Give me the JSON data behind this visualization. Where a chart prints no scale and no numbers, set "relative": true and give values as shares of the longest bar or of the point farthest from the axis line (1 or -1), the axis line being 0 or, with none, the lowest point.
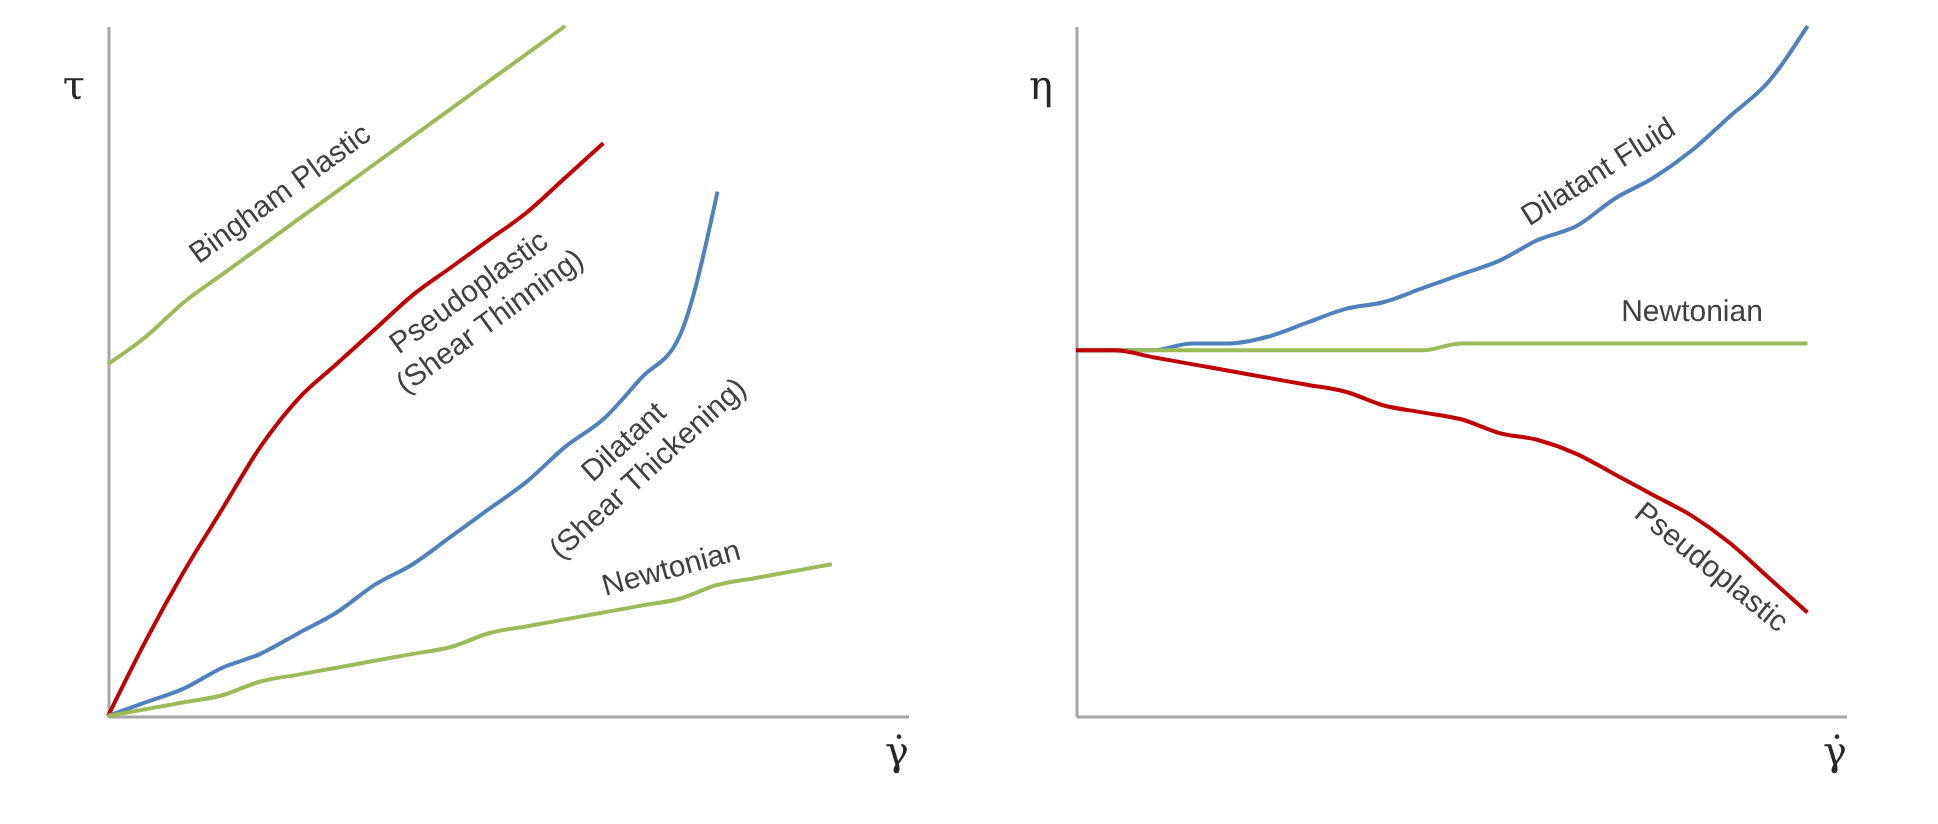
{
  "chart_data": [
    {
      "type": "line",
      "relative": true,
      "xlabel": "γ̇",
      "ylabel": "τ",
      "categories": [
        null,
        null,
        null,
        null,
        null,
        null,
        null,
        null,
        null,
        null,
        null,
        null,
        null,
        null,
        null,
        null,
        null,
        null,
        null,
        null,
        null,
        null
      ],
      "series": [
        {
          "name": "Bingham Plastic",
          "color": "#9bbb59",
          "values": [
            0.51,
            0.55,
            0.6,
            0.64,
            0.68,
            0.72,
            0.76,
            0.8,
            0.84,
            0.88,
            0.92,
            0.96,
            1.0,
            null,
            null,
            null,
            null,
            null,
            null,
            null,
            null,
            null
          ]
        },
        {
          "name": "Pseudoplastic (Shear Thinning)",
          "color": "#c00000",
          "values": [
            0,
            0.11,
            0.21,
            0.3,
            0.39,
            0.46,
            0.51,
            0.56,
            0.61,
            0.65,
            0.69,
            0.73,
            0.78,
            0.83,
            null,
            null,
            null,
            null,
            null,
            null,
            null,
            null
          ]
        },
        {
          "name": "Dilatant (Shear Thickening)",
          "color": "#4f81bd",
          "values": [
            0,
            0.02,
            0.04,
            0.07,
            0.09,
            0.12,
            0.15,
            0.19,
            0.22,
            0.26,
            0.3,
            0.34,
            0.39,
            0.43,
            0.49,
            0.55,
            0.76,
            null,
            null,
            null,
            null,
            null
          ]
        },
        {
          "name": "Newtonian",
          "color": "#9bbb59",
          "values": [
            0,
            0.01,
            0.02,
            0.03,
            0.05,
            0.06,
            0.07,
            0.08,
            0.09,
            0.1,
            0.12,
            0.13,
            0.14,
            0.15,
            0.16,
            0.17,
            0.19,
            0.2,
            0.21,
            0.22,
            null,
            null
          ]
        }
      ]
    },
    {
      "type": "line",
      "relative": true,
      "xlabel": "γ̇",
      "ylabel": "η",
      "categories": [
        null,
        null,
        null,
        null,
        null,
        null,
        null,
        null,
        null,
        null,
        null,
        null,
        null,
        null,
        null,
        null,
        null,
        null,
        null,
        null,
        null
      ],
      "series": [
        {
          "name": "Dilatant Fluid",
          "color": "#4f81bd",
          "values": [
            0.53,
            0.53,
            0.53,
            0.54,
            0.54,
            0.55,
            0.57,
            0.59,
            0.6,
            0.62,
            0.64,
            0.66,
            0.69,
            0.71,
            0.75,
            0.78,
            0.82,
            0.87,
            0.92,
            1.0,
            null
          ]
        },
        {
          "name": "Newtonian",
          "color": "#9bbb59",
          "values": [
            0.53,
            0.53,
            0.53,
            0.53,
            0.53,
            0.53,
            0.53,
            0.53,
            0.53,
            0.53,
            0.54,
            0.54,
            0.54,
            0.54,
            0.54,
            0.54,
            0.54,
            0.54,
            0.54,
            0.54,
            null
          ]
        },
        {
          "name": "Pseudoplastic",
          "color": "#c00000",
          "values": [
            0.53,
            0.53,
            0.52,
            0.51,
            0.5,
            0.49,
            0.48,
            0.47,
            0.45,
            0.44,
            0.43,
            0.41,
            0.4,
            0.38,
            0.35,
            0.32,
            0.29,
            0.25,
            0.2,
            0.15,
            null
          ]
        }
      ]
    }
  ]
}
